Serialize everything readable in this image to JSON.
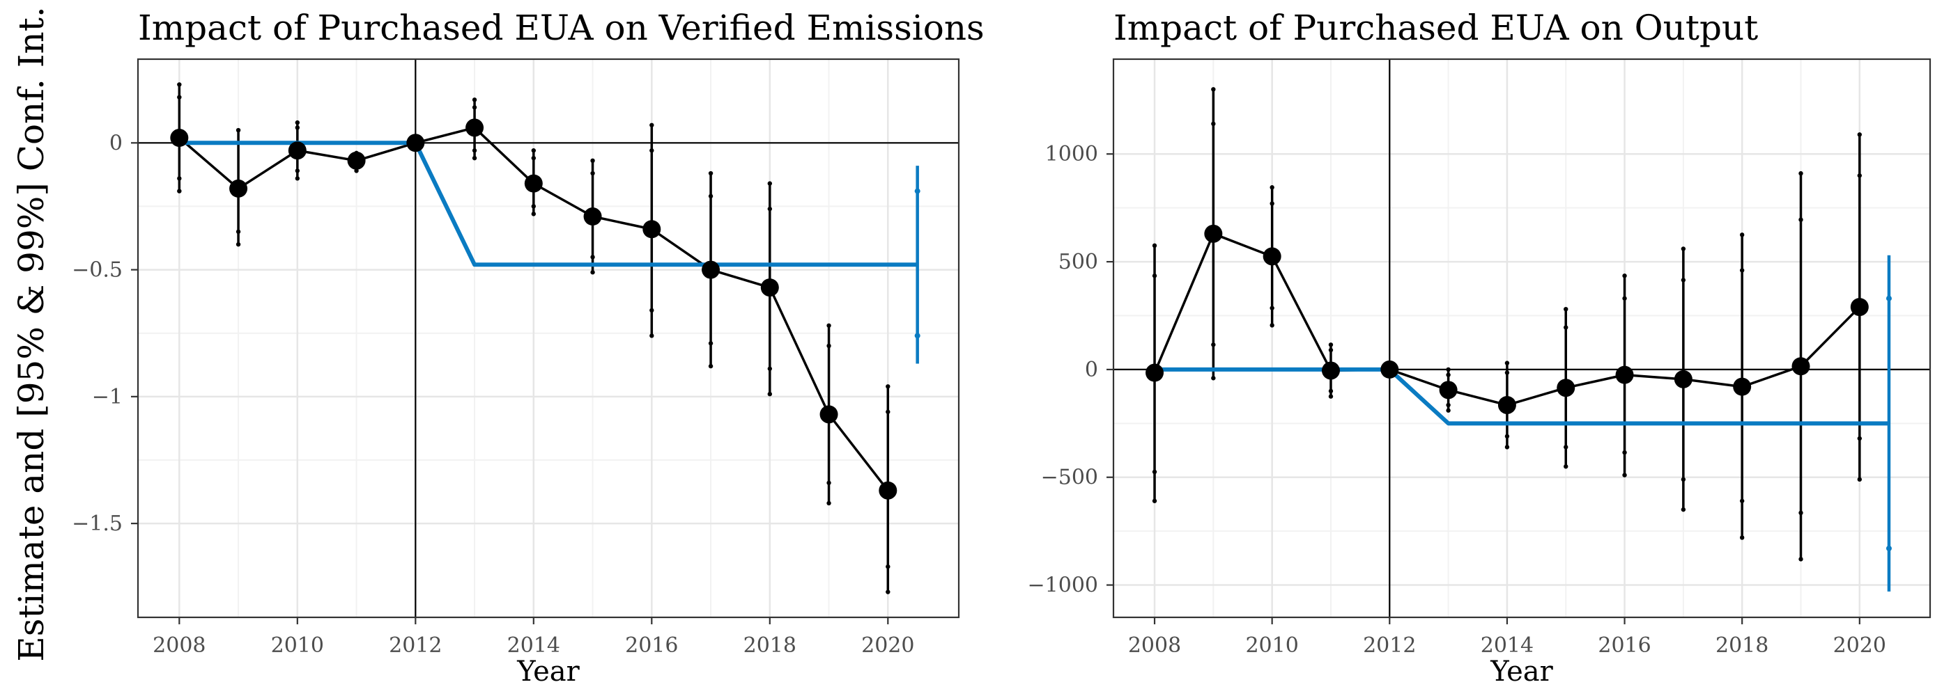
{
  "figure": {
    "shared_ylabel": "Estimate and [95% & 99%] Conf. Int."
  },
  "chart_data": [
    {
      "type": "line",
      "title": "Impact of Purchased EUA on Verified Emissions",
      "xlabel": "Year",
      "ylabel": "Estimate and [95% & 99%] Conf. Int.",
      "xlim": [
        2007.3,
        2021.2
      ],
      "ylim": [
        -1.87,
        0.33
      ],
      "x_ticks": [
        2008,
        2010,
        2012,
        2014,
        2016,
        2018,
        2020
      ],
      "y_ticks": [
        0,
        -0.5,
        -1,
        -1.5
      ],
      "y_tick_labels": [
        "0",
        "−0.5",
        "−1",
        "−1.5"
      ],
      "reference_lines": {
        "hline": 0,
        "vline": 2012
      },
      "grid": true,
      "colors": {
        "estimate": "#000000",
        "pooled": "#0a7bc2"
      },
      "series": [
        {
          "x": [
            2008,
            2009,
            2010,
            2011,
            2012,
            2013,
            2014,
            2015,
            2016,
            2017,
            2018,
            2019,
            2020
          ],
          "y": [
            0.02,
            -0.18,
            -0.03,
            -0.07,
            0.0,
            0.06,
            -0.16,
            -0.29,
            -0.34,
            -0.5,
            -0.57,
            -1.07,
            -1.37
          ],
          "ci95": [
            [
              -0.14,
              0.18
            ],
            [
              -0.35,
              0.0
            ],
            [
              -0.11,
              0.06
            ],
            [
              -0.1,
              -0.05
            ],
            [
              0.0,
              0.0
            ],
            [
              -0.03,
              0.14
            ],
            [
              -0.25,
              -0.06
            ],
            [
              -0.45,
              -0.12
            ],
            [
              -0.66,
              -0.03
            ],
            [
              -0.79,
              -0.21
            ],
            [
              -0.89,
              -0.26
            ],
            [
              -1.34,
              -0.8
            ],
            [
              -1.67,
              -1.06
            ]
          ],
          "ci99": [
            [
              -0.19,
              0.23
            ],
            [
              -0.4,
              0.05
            ],
            [
              -0.14,
              0.08
            ],
            [
              -0.11,
              -0.04
            ],
            [
              0.0,
              0.0
            ],
            [
              -0.06,
              0.17
            ],
            [
              -0.28,
              -0.03
            ],
            [
              -0.51,
              -0.07
            ],
            [
              -0.76,
              0.07
            ],
            [
              -0.88,
              -0.12
            ],
            [
              -0.99,
              -0.16
            ],
            [
              -1.42,
              -0.72
            ],
            [
              -1.77,
              -0.96
            ]
          ]
        },
        {
          "x": [
            2008,
            2012,
            2013,
            2020.5
          ],
          "y": [
            0,
            0,
            -0.48,
            -0.48
          ],
          "ci_x": 2020.5,
          "ci95": [
            -0.76,
            -0.19
          ],
          "ci99": [
            -0.87,
            -0.09
          ]
        }
      ]
    },
    {
      "type": "line",
      "title": "Impact of Purchased EUA on Output",
      "xlabel": "Year",
      "ylabel": "Estimate and [95% & 99%] Conf. Int.",
      "xlim": [
        2007.3,
        2021.2
      ],
      "ylim": [
        -1150,
        1440
      ],
      "x_ticks": [
        2008,
        2010,
        2012,
        2014,
        2016,
        2018,
        2020
      ],
      "y_ticks": [
        1000,
        500,
        0,
        -500,
        -1000
      ],
      "y_tick_labels": [
        "1000",
        "500",
        "0",
        "−500",
        "−1000"
      ],
      "reference_lines": {
        "hline": 0,
        "vline": 2012
      },
      "grid": true,
      "colors": {
        "estimate": "#000000",
        "pooled": "#0a7bc2"
      },
      "series": [
        {
          "x": [
            2008,
            2009,
            2010,
            2011,
            2012,
            2013,
            2014,
            2015,
            2016,
            2017,
            2018,
            2019,
            2020
          ],
          "y": [
            -15,
            630,
            525,
            -5,
            0,
            -95,
            -165,
            -85,
            -25,
            -45,
            -80,
            15,
            290
          ],
          "ci95": [
            [
              -475,
              435
            ],
            [
              115,
              1140
            ],
            [
              285,
              770
            ],
            [
              -100,
              90
            ],
            [
              0,
              0
            ],
            [
              -165,
              -25
            ],
            [
              -310,
              -15
            ],
            [
              -360,
              195
            ],
            [
              -385,
              330
            ],
            [
              -510,
              415
            ],
            [
              -610,
              460
            ],
            [
              -665,
              695
            ],
            [
              -320,
              900
            ]
          ],
          "ci99": [
            [
              -610,
              575
            ],
            [
              -40,
              1300
            ],
            [
              205,
              845
            ],
            [
              -125,
              115
            ],
            [
              0,
              0
            ],
            [
              -190,
              0
            ],
            [
              -360,
              30
            ],
            [
              -450,
              280
            ],
            [
              -490,
              435
            ],
            [
              -650,
              560
            ],
            [
              -780,
              625
            ],
            [
              -880,
              910
            ],
            [
              -510,
              1090
            ]
          ]
        },
        {
          "x": [
            2008,
            2012,
            2013,
            2020.5
          ],
          "y": [
            0,
            0,
            -250,
            -250
          ],
          "ci_x": 2020.5,
          "ci95": [
            -830,
            330
          ],
          "ci99": [
            -1030,
            530
          ]
        }
      ]
    }
  ]
}
